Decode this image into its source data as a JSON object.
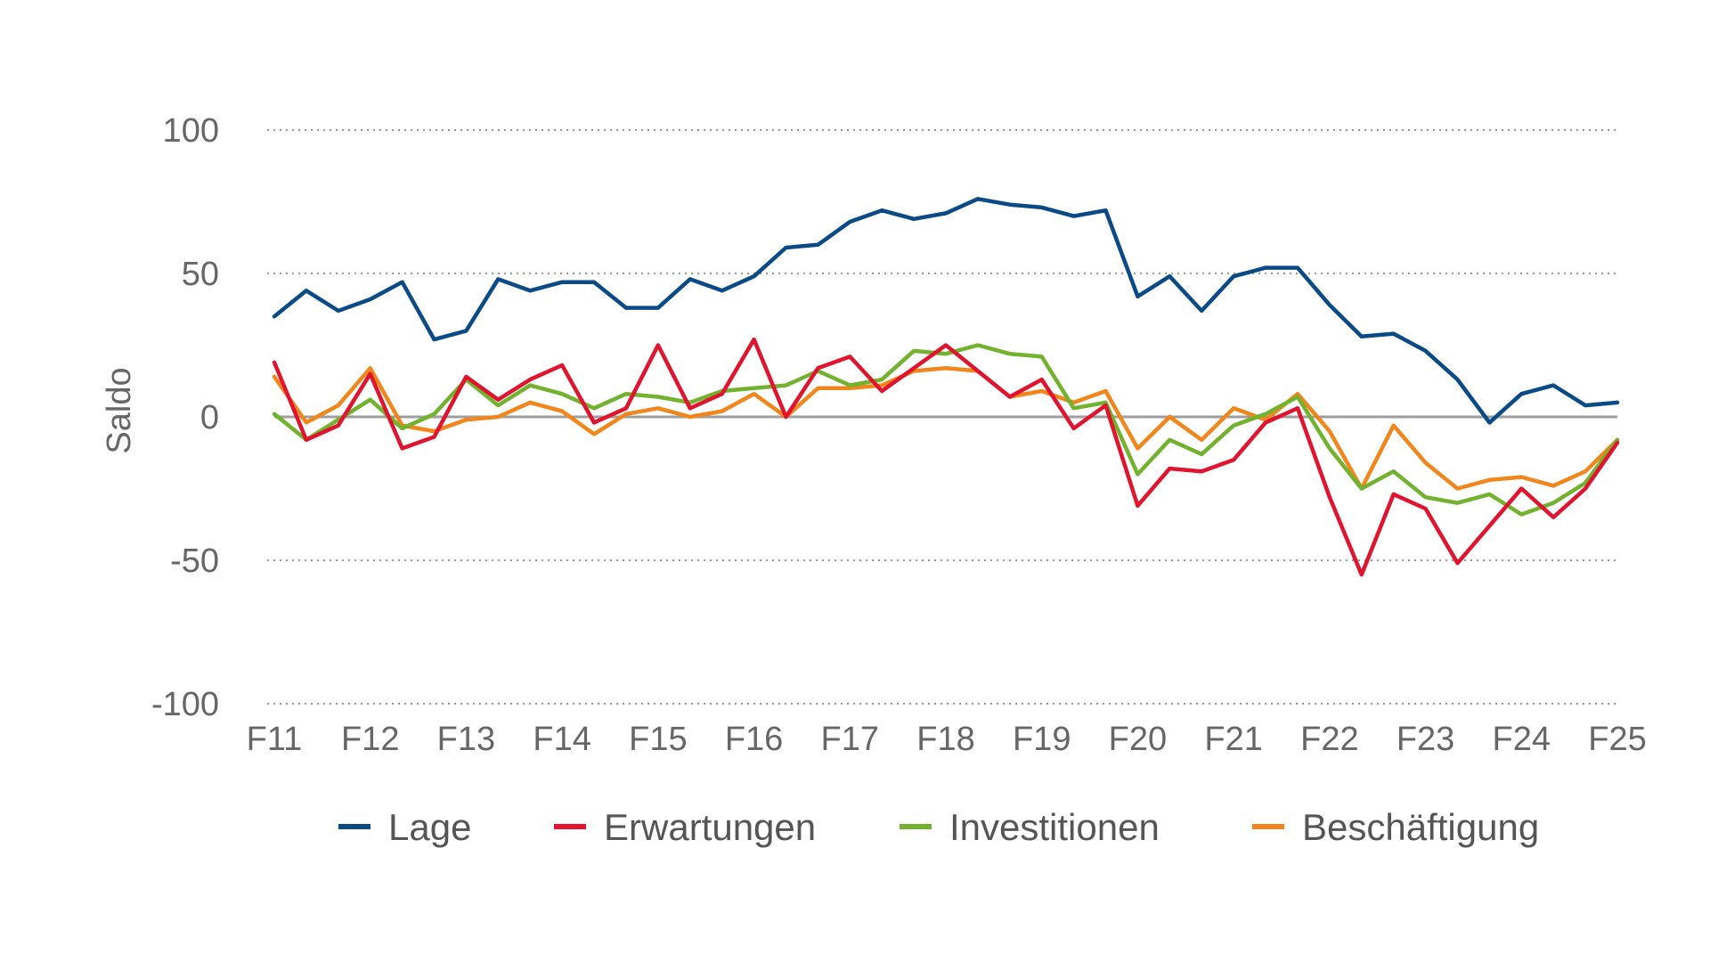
{
  "chart_data": {
    "type": "line",
    "ylabel": "Saldo",
    "ylim": [
      -100,
      100
    ],
    "yticks": [
      100,
      50,
      0,
      -50,
      -100
    ],
    "xlim": [
      0,
      56
    ],
    "xticks": [
      {
        "label": "F11",
        "x": 0
      },
      {
        "label": "F12",
        "x": 4
      },
      {
        "label": "F13",
        "x": 8
      },
      {
        "label": "F14",
        "x": 12
      },
      {
        "label": "F15",
        "x": 16
      },
      {
        "label": "F16",
        "x": 20
      },
      {
        "label": "F17",
        "x": 24
      },
      {
        "label": "F18",
        "x": 28
      },
      {
        "label": "F19",
        "x": 32
      },
      {
        "label": "F20",
        "x": 36
      },
      {
        "label": "F21",
        "x": 40
      },
      {
        "label": "F22",
        "x": 44
      },
      {
        "label": "F23",
        "x": 48
      },
      {
        "label": "F24",
        "x": 52
      },
      {
        "label": "F25",
        "x": 56
      }
    ],
    "grid": true,
    "legend_position": "bottom",
    "series": [
      {
        "name": "Lage",
        "color": "#0a4a86",
        "values": [
          35,
          44,
          37,
          41,
          47,
          27,
          30,
          48,
          44,
          47,
          47,
          38,
          38,
          48,
          44,
          49,
          59,
          60,
          68,
          72,
          69,
          71,
          76,
          74,
          73,
          70,
          72,
          42,
          49,
          37,
          49,
          52,
          52,
          39,
          28,
          29,
          23,
          13,
          -2,
          8,
          11,
          4,
          5
        ]
      },
      {
        "name": "Erwartungen",
        "color": "#e0142f",
        "values": [
          19,
          -8,
          -3,
          15,
          -11,
          -7,
          14,
          6,
          13,
          18,
          -2,
          3,
          25,
          3,
          8,
          27,
          0,
          17,
          21,
          9,
          17,
          25,
          16,
          7,
          13,
          -4,
          4,
          -31,
          -18,
          -19,
          -15,
          -2,
          3,
          -28,
          -55,
          -27,
          -32,
          -51,
          -38,
          -25,
          -35,
          -25,
          -9
        ]
      },
      {
        "name": "Investitionen",
        "color": "#72b22e",
        "values": [
          1,
          -8,
          -1,
          6,
          -4,
          1,
          13,
          4,
          11,
          8,
          3,
          8,
          7,
          5,
          9,
          10,
          11,
          16,
          11,
          13,
          23,
          22,
          25,
          22,
          21,
          3,
          5,
          -20,
          -8,
          -13,
          -3,
          1,
          7,
          -11,
          -25,
          -19,
          -28,
          -30,
          -27,
          -34,
          -30,
          -23,
          -8
        ]
      },
      {
        "name": "Beschäftigung",
        "color": "#f0861c",
        "values": [
          14,
          -2,
          4,
          17,
          -3,
          -5,
          -1,
          0,
          5,
          2,
          -6,
          1,
          3,
          0,
          2,
          8,
          0,
          10,
          10,
          11,
          16,
          17,
          16,
          7,
          9,
          5,
          9,
          -11,
          0,
          -8,
          3,
          -1,
          8,
          -5,
          -25,
          -3,
          -16,
          -25,
          -22,
          -21,
          -24,
          -19,
          -8
        ]
      }
    ]
  }
}
